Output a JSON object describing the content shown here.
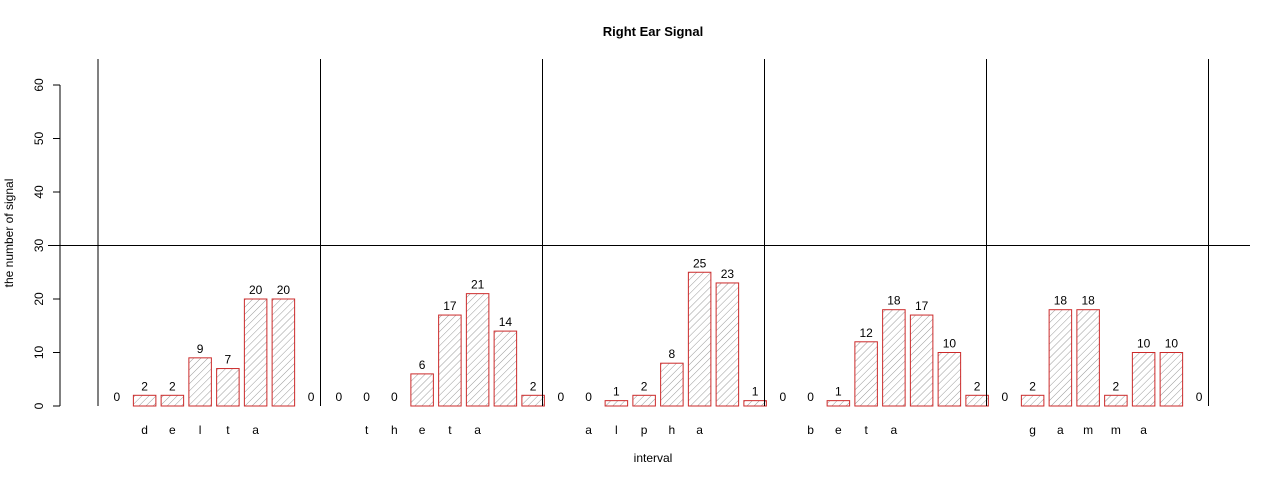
{
  "chart_data": {
    "type": "bar",
    "title": "Right Ear Signal",
    "xlabel": "interval",
    "ylabel": "the number of signal",
    "ylim": [
      0,
      60
    ],
    "yticks": [
      0,
      10,
      20,
      30,
      40,
      50,
      60
    ],
    "reference_line": 30,
    "bar_color": "#cc2a2a",
    "hatch_color": "#9a9a9a",
    "grid": false,
    "groups": [
      {
        "letters": [
          "d",
          "e",
          "l",
          "t",
          "a"
        ],
        "values": [
          0,
          2,
          2,
          9,
          7,
          20,
          20,
          0
        ]
      },
      {
        "letters": [
          "t",
          "h",
          "e",
          "t",
          "a"
        ],
        "values": [
          0,
          0,
          0,
          6,
          17,
          21,
          14,
          2
        ]
      },
      {
        "letters": [
          "a",
          "l",
          "p",
          "h",
          "a"
        ],
        "values": [
          0,
          0,
          1,
          2,
          8,
          25,
          23,
          1
        ]
      },
      {
        "letters": [
          "b",
          "e",
          "t",
          "a"
        ],
        "values": [
          0,
          0,
          1,
          12,
          18,
          17,
          10,
          2
        ]
      },
      {
        "letters": [
          "g",
          "a",
          "m",
          "m",
          "a"
        ],
        "values": [
          0,
          2,
          18,
          18,
          2,
          10,
          10,
          0
        ]
      }
    ]
  }
}
